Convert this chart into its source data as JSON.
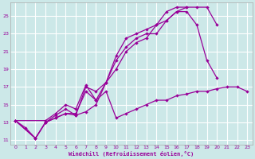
{
  "background_color": "#cce8e8",
  "grid_color": "#ffffff",
  "line_color": "#990099",
  "xlabel": "Windchill (Refroidissement éolien,°C)",
  "yticks": [
    11,
    13,
    15,
    17,
    19,
    21,
    23,
    25
  ],
  "xticks": [
    0,
    1,
    2,
    3,
    4,
    5,
    6,
    7,
    8,
    9,
    10,
    11,
    12,
    13,
    14,
    15,
    16,
    17,
    18,
    19,
    20,
    21,
    22,
    23
  ],
  "xlim": [
    -0.5,
    23.5
  ],
  "ylim": [
    10.5,
    26.5
  ],
  "line1_x": [
    0,
    1,
    2,
    3,
    4,
    5,
    6,
    7,
    8,
    9,
    10,
    11,
    12,
    13,
    14,
    15,
    16,
    17
  ],
  "line1_y": [
    13.2,
    12.4,
    11.2,
    13.0,
    13.8,
    14.5,
    13.8,
    14.2,
    15.0,
    17.5,
    20.5,
    22.5,
    23.0,
    23.5,
    24.0,
    25.5,
    26.0,
    26.0
  ],
  "line2_x": [
    0,
    2,
    3,
    4,
    5,
    6,
    7,
    8,
    9,
    10,
    11,
    12,
    13,
    14,
    15,
    16,
    17,
    18,
    19,
    20
  ],
  "line2_y": [
    13.2,
    11.2,
    13.0,
    13.5,
    14.0,
    13.8,
    17.0,
    16.5,
    17.5,
    20.0,
    21.5,
    22.5,
    23.0,
    23.0,
    24.5,
    25.5,
    26.0,
    26.0,
    26.0,
    24.0
  ],
  "line3_x": [
    0,
    3,
    4,
    5,
    6,
    7,
    8,
    9,
    10,
    11,
    12,
    13,
    14,
    15,
    16,
    17,
    18,
    19,
    20
  ],
  "line3_y": [
    13.2,
    13.2,
    14.0,
    15.0,
    14.5,
    17.2,
    15.5,
    17.5,
    19.0,
    21.0,
    22.0,
    22.5,
    24.0,
    24.5,
    25.5,
    25.5,
    24.0,
    20.0,
    18.0
  ],
  "line4_x": [
    0,
    2,
    3,
    4,
    5,
    6,
    7,
    8,
    9,
    10,
    11,
    12,
    13,
    14,
    15,
    16,
    17,
    18,
    19,
    20,
    21,
    22,
    23
  ],
  "line4_y": [
    13.2,
    11.2,
    13.0,
    13.5,
    14.0,
    14.0,
    16.5,
    15.5,
    16.5,
    13.5,
    14.0,
    14.5,
    15.0,
    15.5,
    15.5,
    16.0,
    16.2,
    16.5,
    16.5,
    16.8,
    17.0,
    17.0,
    16.5
  ]
}
